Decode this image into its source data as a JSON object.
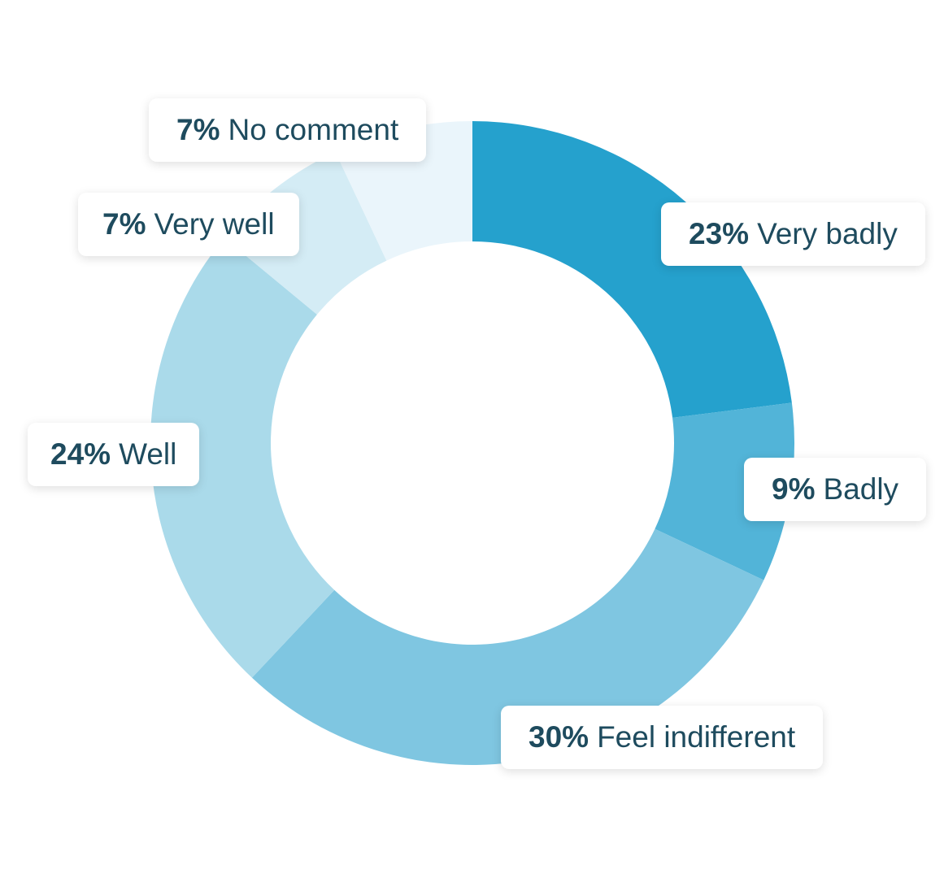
{
  "chart_data": {
    "type": "pie",
    "variant": "donut",
    "slices": [
      {
        "pct_label": "23%",
        "text": "Very badly",
        "value": 23,
        "color": "#25a1cd"
      },
      {
        "pct_label": "9%",
        "text": "Badly",
        "value": 9,
        "color": "#52b4d8"
      },
      {
        "pct_label": "30%",
        "text": "Feel indifferent",
        "value": 30,
        "color": "#7fc6e1"
      },
      {
        "pct_label": "24%",
        "text": "Well",
        "value": 24,
        "color": "#aadaea"
      },
      {
        "pct_label": "7%",
        "text": "Very well",
        "value": 7,
        "color": "#d4ecf5"
      },
      {
        "pct_label": "7%",
        "text": "No comment",
        "value": 7,
        "color": "#eaf5fb"
      }
    ]
  }
}
